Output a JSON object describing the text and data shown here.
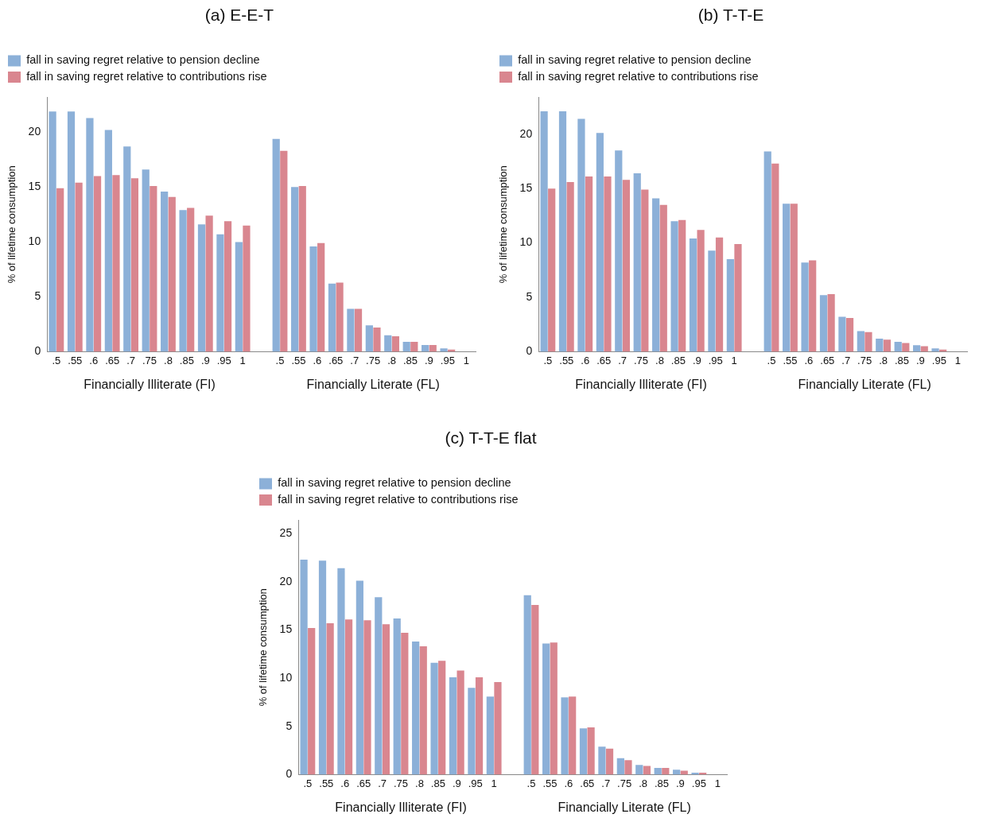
{
  "chart_data": [
    {
      "type": "bar",
      "title": "(a) E-E-T",
      "ylabel": "% of lifetime consumption",
      "categories": [
        ".5",
        ".55",
        ".6",
        ".65",
        ".7",
        ".75",
        ".8",
        ".85",
        ".9",
        ".95",
        "1",
        null,
        ".5",
        ".55",
        ".6",
        ".65",
        ".7",
        ".75",
        ".8",
        ".85",
        ".9",
        ".95",
        "1"
      ],
      "series": [
        {
          "name": "fall in saving regret relative to pension decline",
          "color": "#8cb0d8",
          "values": [
            21.9,
            21.9,
            21.3,
            20.2,
            18.7,
            16.6,
            14.6,
            12.9,
            11.6,
            10.7,
            10.0,
            null,
            19.4,
            15.0,
            9.6,
            6.2,
            3.9,
            2.4,
            1.5,
            0.9,
            0.6,
            0.3,
            0
          ]
        },
        {
          "name": "fall in saving regret relative to contributions rise",
          "color": "#d9868f",
          "values": [
            14.9,
            15.4,
            16.0,
            16.1,
            15.8,
            15.1,
            14.1,
            13.1,
            12.4,
            11.9,
            11.5,
            null,
            18.3,
            15.1,
            9.9,
            6.3,
            3.9,
            2.2,
            1.4,
            0.9,
            0.6,
            0.2,
            0
          ]
        }
      ],
      "ylim": [
        0,
        23.2
      ],
      "yticks": [
        0,
        5,
        10,
        15,
        20
      ],
      "grid": false,
      "legend": "top left",
      "annotations": [
        "Financially Illiterate (FI)",
        "Financially Literate (FL)"
      ]
    },
    {
      "type": "bar",
      "title": "(b) T-T-E",
      "ylabel": "% of lifetime consumption",
      "categories": [
        ".5",
        ".55",
        ".6",
        ".65",
        ".7",
        ".75",
        ".8",
        ".85",
        ".9",
        ".95",
        "1",
        null,
        ".5",
        ".55",
        ".6",
        ".65",
        ".7",
        ".75",
        ".8",
        ".85",
        ".9",
        ".95",
        "1"
      ],
      "series": [
        {
          "name": "fall in saving regret relative to pension decline",
          "color": "#8cb0d8",
          "values": [
            22.1,
            22.1,
            21.4,
            20.1,
            18.5,
            16.4,
            14.1,
            12.0,
            10.4,
            9.3,
            8.5,
            null,
            18.4,
            13.6,
            8.2,
            5.2,
            3.2,
            1.9,
            1.2,
            0.9,
            0.6,
            0.3,
            0
          ]
        },
        {
          "name": "fall in saving regret relative to contributions rise",
          "color": "#d9868f",
          "values": [
            15.0,
            15.6,
            16.1,
            16.1,
            15.8,
            14.9,
            13.5,
            12.1,
            11.2,
            10.5,
            9.9,
            null,
            17.3,
            13.6,
            8.4,
            5.3,
            3.1,
            1.8,
            1.1,
            0.8,
            0.5,
            0.2,
            0
          ]
        }
      ],
      "ylim": [
        0,
        23.4
      ],
      "yticks": [
        0,
        5,
        10,
        15,
        20
      ],
      "grid": false,
      "legend": "top left",
      "annotations": [
        "Financially Illiterate (FI)",
        "Financially Literate (FL)"
      ]
    },
    {
      "type": "bar",
      "title": "(c) T-T-E flat",
      "ylabel": "% of lifetime consumption",
      "categories": [
        ".5",
        ".55",
        ".6",
        ".65",
        ".7",
        ".75",
        ".8",
        ".85",
        ".9",
        ".95",
        "1",
        null,
        ".5",
        ".55",
        ".6",
        ".65",
        ".7",
        ".75",
        ".8",
        ".85",
        ".9",
        ".95",
        "1"
      ],
      "series": [
        {
          "name": "fall in saving regret relative to pension decline",
          "color": "#8cb0d8",
          "values": [
            22.3,
            22.2,
            21.4,
            20.1,
            18.4,
            16.2,
            13.8,
            11.6,
            10.1,
            9.0,
            8.1,
            null,
            18.6,
            13.6,
            8.0,
            4.8,
            2.9,
            1.7,
            1.0,
            0.7,
            0.5,
            0.2,
            0
          ]
        },
        {
          "name": "fall in saving regret relative to contributions rise",
          "color": "#d9868f",
          "values": [
            15.2,
            15.7,
            16.1,
            16.0,
            15.6,
            14.7,
            13.3,
            11.8,
            10.8,
            10.1,
            9.6,
            null,
            17.6,
            13.7,
            8.1,
            4.9,
            2.7,
            1.5,
            0.9,
            0.7,
            0.4,
            0.2,
            0
          ]
        }
      ],
      "ylim": [
        0,
        26.4
      ],
      "yticks": [
        0,
        5,
        10,
        15,
        20,
        25
      ],
      "grid": false,
      "legend": "top left",
      "annotations": [
        "Financially Illiterate (FI)",
        "Financially Literate (FL)"
      ]
    }
  ]
}
